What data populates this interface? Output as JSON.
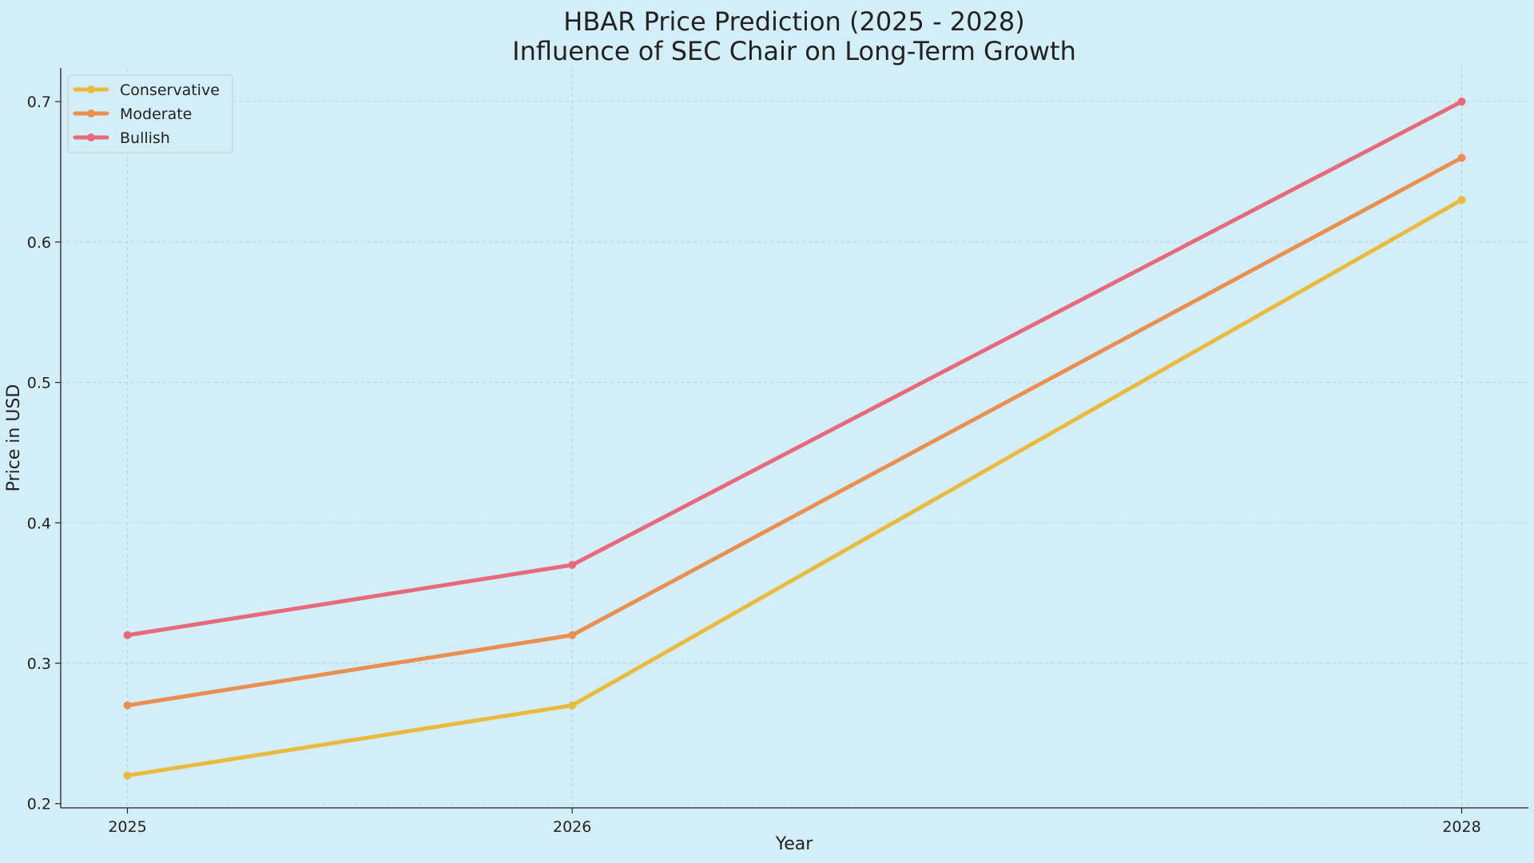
{
  "chart_data": {
    "type": "line",
    "title": "HBAR Price Prediction (2025 - 2028)",
    "subtitle": "Influence of SEC Chair on Long-Term Growth",
    "xlabel": "Year",
    "ylabel": "Price in USD",
    "x": [
      2025,
      2026,
      2028
    ],
    "x_tick_labels": [
      "2025",
      "2026",
      "2028"
    ],
    "xlim": [
      2024.85,
      2028.15
    ],
    "ylim": [
      0.197,
      0.724
    ],
    "y_ticks": [
      0.2,
      0.3,
      0.4,
      0.5,
      0.6,
      0.7
    ],
    "y_tick_labels": [
      "0.2",
      "0.3",
      "0.4",
      "0.5",
      "0.6",
      "0.7"
    ],
    "grid": true,
    "legend_position": "top-left",
    "series": [
      {
        "name": "Conservative",
        "values": [
          0.22,
          0.27,
          0.63
        ],
        "color": "#e8bb40"
      },
      {
        "name": "Moderate",
        "values": [
          0.27,
          0.32,
          0.66
        ],
        "color": "#ea8f52"
      },
      {
        "name": "Bullish",
        "values": [
          0.32,
          0.37,
          0.7
        ],
        "color": "#e66a7a"
      }
    ]
  }
}
